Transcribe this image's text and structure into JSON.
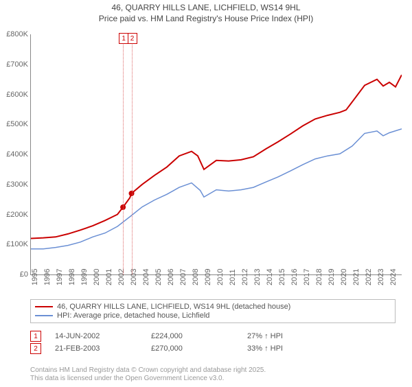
{
  "title_line1": "46, QUARRY HILLS LANE, LICHFIELD, WS14 9HL",
  "title_line2": "Price paid vs. HM Land Registry's House Price Index (HPI)",
  "chart": {
    "type": "line",
    "x_min": 1995,
    "x_max": 2025,
    "xticks": [
      1995,
      1996,
      1997,
      1998,
      1999,
      2000,
      2001,
      2002,
      2003,
      2004,
      2005,
      2006,
      2007,
      2008,
      2009,
      2010,
      2011,
      2012,
      2013,
      2014,
      2015,
      2016,
      2017,
      2018,
      2019,
      2020,
      2021,
      2022,
      2023,
      2024
    ],
    "y_min": 0,
    "y_max": 800000,
    "yticks": [
      0,
      100000,
      200000,
      300000,
      400000,
      500000,
      600000,
      700000,
      800000
    ],
    "ytick_labels": [
      "£0",
      "£100K",
      "£200K",
      "£300K",
      "£400K",
      "£500K",
      "£600K",
      "£700K",
      "£800K"
    ],
    "series": [
      {
        "name": "price_paid",
        "color": "#ca0000",
        "width": 2,
        "points": [
          [
            1995,
            120000
          ],
          [
            1996,
            122000
          ],
          [
            1997,
            125000
          ],
          [
            1998,
            135000
          ],
          [
            1999,
            148000
          ],
          [
            2000,
            162000
          ],
          [
            2001,
            180000
          ],
          [
            2002,
            200000
          ],
          [
            2002.45,
            224000
          ],
          [
            2003,
            255000
          ],
          [
            2003.14,
            270000
          ],
          [
            2004,
            300000
          ],
          [
            2005,
            330000
          ],
          [
            2006,
            358000
          ],
          [
            2007,
            395000
          ],
          [
            2008,
            410000
          ],
          [
            2008.5,
            395000
          ],
          [
            2009,
            350000
          ],
          [
            2009.5,
            365000
          ],
          [
            2010,
            380000
          ],
          [
            2011,
            378000
          ],
          [
            2012,
            382000
          ],
          [
            2013,
            392000
          ],
          [
            2014,
            418000
          ],
          [
            2015,
            442000
          ],
          [
            2016,
            468000
          ],
          [
            2017,
            495000
          ],
          [
            2018,
            518000
          ],
          [
            2019,
            530000
          ],
          [
            2020,
            540000
          ],
          [
            2020.5,
            548000
          ],
          [
            2021,
            575000
          ],
          [
            2022,
            630000
          ],
          [
            2023,
            650000
          ],
          [
            2023.5,
            628000
          ],
          [
            2024,
            640000
          ],
          [
            2024.5,
            625000
          ],
          [
            2025,
            665000
          ]
        ]
      },
      {
        "name": "hpi",
        "color": "#6a8fd4",
        "width": 1.5,
        "points": [
          [
            1995,
            85000
          ],
          [
            1996,
            85000
          ],
          [
            1997,
            90000
          ],
          [
            1998,
            97000
          ],
          [
            1999,
            108000
          ],
          [
            2000,
            125000
          ],
          [
            2001,
            138000
          ],
          [
            2002,
            160000
          ],
          [
            2003,
            192000
          ],
          [
            2004,
            225000
          ],
          [
            2005,
            248000
          ],
          [
            2006,
            267000
          ],
          [
            2007,
            290000
          ],
          [
            2008,
            305000
          ],
          [
            2008.7,
            280000
          ],
          [
            2009,
            258000
          ],
          [
            2009.5,
            270000
          ],
          [
            2010,
            282000
          ],
          [
            2011,
            278000
          ],
          [
            2012,
            282000
          ],
          [
            2013,
            290000
          ],
          [
            2014,
            308000
          ],
          [
            2015,
            325000
          ],
          [
            2016,
            345000
          ],
          [
            2017,
            366000
          ],
          [
            2018,
            385000
          ],
          [
            2019,
            395000
          ],
          [
            2020,
            402000
          ],
          [
            2021,
            428000
          ],
          [
            2022,
            470000
          ],
          [
            2023,
            478000
          ],
          [
            2023.5,
            462000
          ],
          [
            2024,
            472000
          ],
          [
            2025,
            485000
          ]
        ]
      }
    ],
    "markers": [
      {
        "idx": "1",
        "x": 2002.45,
        "y": 224000
      },
      {
        "idx": "2",
        "x": 2003.14,
        "y": 270000
      }
    ],
    "annotation_boxes": [
      {
        "label": "1",
        "x": 2002.45
      },
      {
        "label": "2",
        "x": 2003.14
      }
    ]
  },
  "legend": [
    {
      "color": "#ca0000",
      "label": "46, QUARRY HILLS LANE, LICHFIELD, WS14 9HL (detached house)"
    },
    {
      "color": "#6a8fd4",
      "label": "HPI: Average price, detached house, Lichfield"
    }
  ],
  "transactions": [
    {
      "idx": "1",
      "date": "14-JUN-2002",
      "price": "£224,000",
      "delta": "27% ↑ HPI"
    },
    {
      "idx": "2",
      "date": "21-FEB-2003",
      "price": "£270,000",
      "delta": "33% ↑ HPI"
    }
  ],
  "footer_line1": "Contains HM Land Registry data © Crown copyright and database right 2025.",
  "footer_line2": "This data is licensed under the Open Government Licence v3.0."
}
